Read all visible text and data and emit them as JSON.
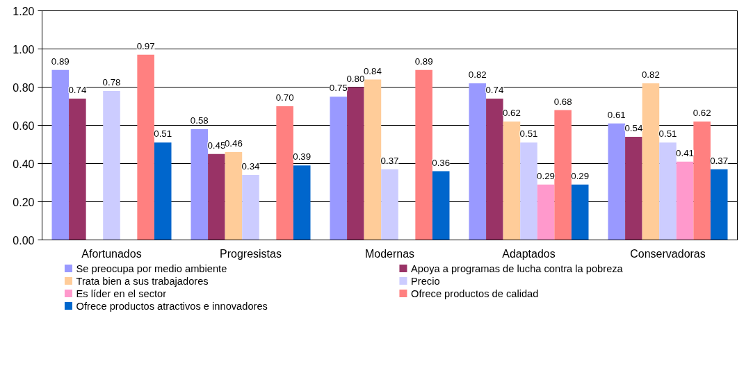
{
  "chart_data": {
    "type": "bar",
    "categories": [
      "Afortunados",
      "Progresistas",
      "Modernas",
      "Adaptados",
      "Conservadoras"
    ],
    "ylim": [
      0,
      1.2
    ],
    "yticks": [
      {
        "value": 0,
        "label": "0.00"
      },
      {
        "value": 0.2,
        "label": "0.20"
      },
      {
        "value": 0.4,
        "label": "0.40"
      },
      {
        "value": 0.6,
        "label": "0.60"
      },
      {
        "value": 0.8,
        "label": "0.80"
      },
      {
        "value": 1.0,
        "label": "1.00"
      },
      {
        "value": 1.2,
        "label": "1.20"
      }
    ],
    "grid": "y",
    "legend": "bottom",
    "series": [
      {
        "name": "Se preocupa por medio ambiente",
        "color": "#9999ff",
        "values": [
          0.89,
          0.58,
          0.75,
          0.82,
          0.61
        ],
        "value_labels": [
          "0.89",
          "0.58",
          "0.75",
          "0.82",
          "0.61"
        ]
      },
      {
        "name": "Apoya a programas de lucha contra la pobreza",
        "color": "#993366",
        "values": [
          0.74,
          0.45,
          0.8,
          0.74,
          0.54
        ],
        "value_labels": [
          "0.74",
          "0.45",
          "0.80",
          "0.74",
          "0.54"
        ]
      },
      {
        "name": "Trata bien a sus trabajadores",
        "color": "#ffcc99",
        "values": [
          null,
          0.46,
          0.84,
          0.62,
          0.82
        ],
        "value_labels": [
          null,
          "0.46",
          "0.84",
          "0.62",
          "0.82"
        ]
      },
      {
        "name": "Precio",
        "color": "#ccccff",
        "values": [
          0.78,
          0.34,
          0.37,
          0.51,
          0.51
        ],
        "value_labels": [
          "0.78",
          "0.34",
          "0.37",
          "0.51",
          "0.51"
        ]
      },
      {
        "name": "Es líder en el sector",
        "color": "#ff99cc",
        "values": [
          null,
          null,
          null,
          0.29,
          0.41
        ],
        "value_labels": [
          null,
          null,
          null,
          "0.29",
          "0.41"
        ]
      },
      {
        "name": "Ofrece productos de calidad",
        "color": "#ff8080",
        "values": [
          0.97,
          0.7,
          0.89,
          0.68,
          0.62
        ],
        "value_labels": [
          "0.97",
          "0.70",
          "0.89",
          "0.68",
          "0.62"
        ]
      },
      {
        "name": "Ofrece productos atractivos e innovadores",
        "color": "#0066cc",
        "values": [
          0.51,
          0.39,
          0.36,
          0.29,
          0.37
        ],
        "value_labels": [
          "0.51",
          "0.39",
          "0.36",
          "0.29",
          "0.37"
        ]
      }
    ]
  }
}
